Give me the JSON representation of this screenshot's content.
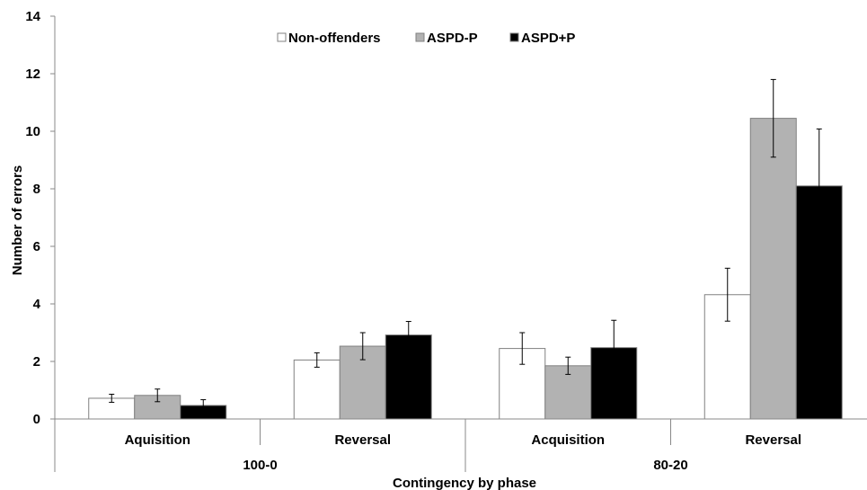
{
  "chart_data": {
    "type": "bar",
    "title": "",
    "xlabel": "Contingency by phase",
    "ylabel": "Number of errors",
    "ylim": [
      0,
      14
    ],
    "yticks": [
      0,
      2,
      4,
      6,
      8,
      10,
      12,
      14
    ],
    "grid": false,
    "legend_position": "top-center",
    "categories": [
      "Aquisition",
      "Reversal",
      "Acquisition",
      "Reversal"
    ],
    "groups": [
      {
        "label": "100-0",
        "categories": [
          0,
          1
        ]
      },
      {
        "label": "80-20",
        "categories": [
          2,
          3
        ]
      }
    ],
    "series": [
      {
        "name": "Non-offenders",
        "color": "#ffffff",
        "values": [
          0.72,
          2.05,
          2.45,
          4.32
        ],
        "errors": [
          0.14,
          0.25,
          0.55,
          0.92
        ]
      },
      {
        "name": "ASPD-P",
        "color": "#b2b2b2",
        "values": [
          0.82,
          2.53,
          1.85,
          10.45
        ],
        "errors": [
          0.22,
          0.47,
          0.3,
          1.35
        ]
      },
      {
        "name": "ASPD+P",
        "color": "#000000",
        "values": [
          0.47,
          2.92,
          2.48,
          8.1
        ],
        "errors": [
          0.2,
          0.47,
          0.95,
          1.98
        ]
      }
    ]
  }
}
